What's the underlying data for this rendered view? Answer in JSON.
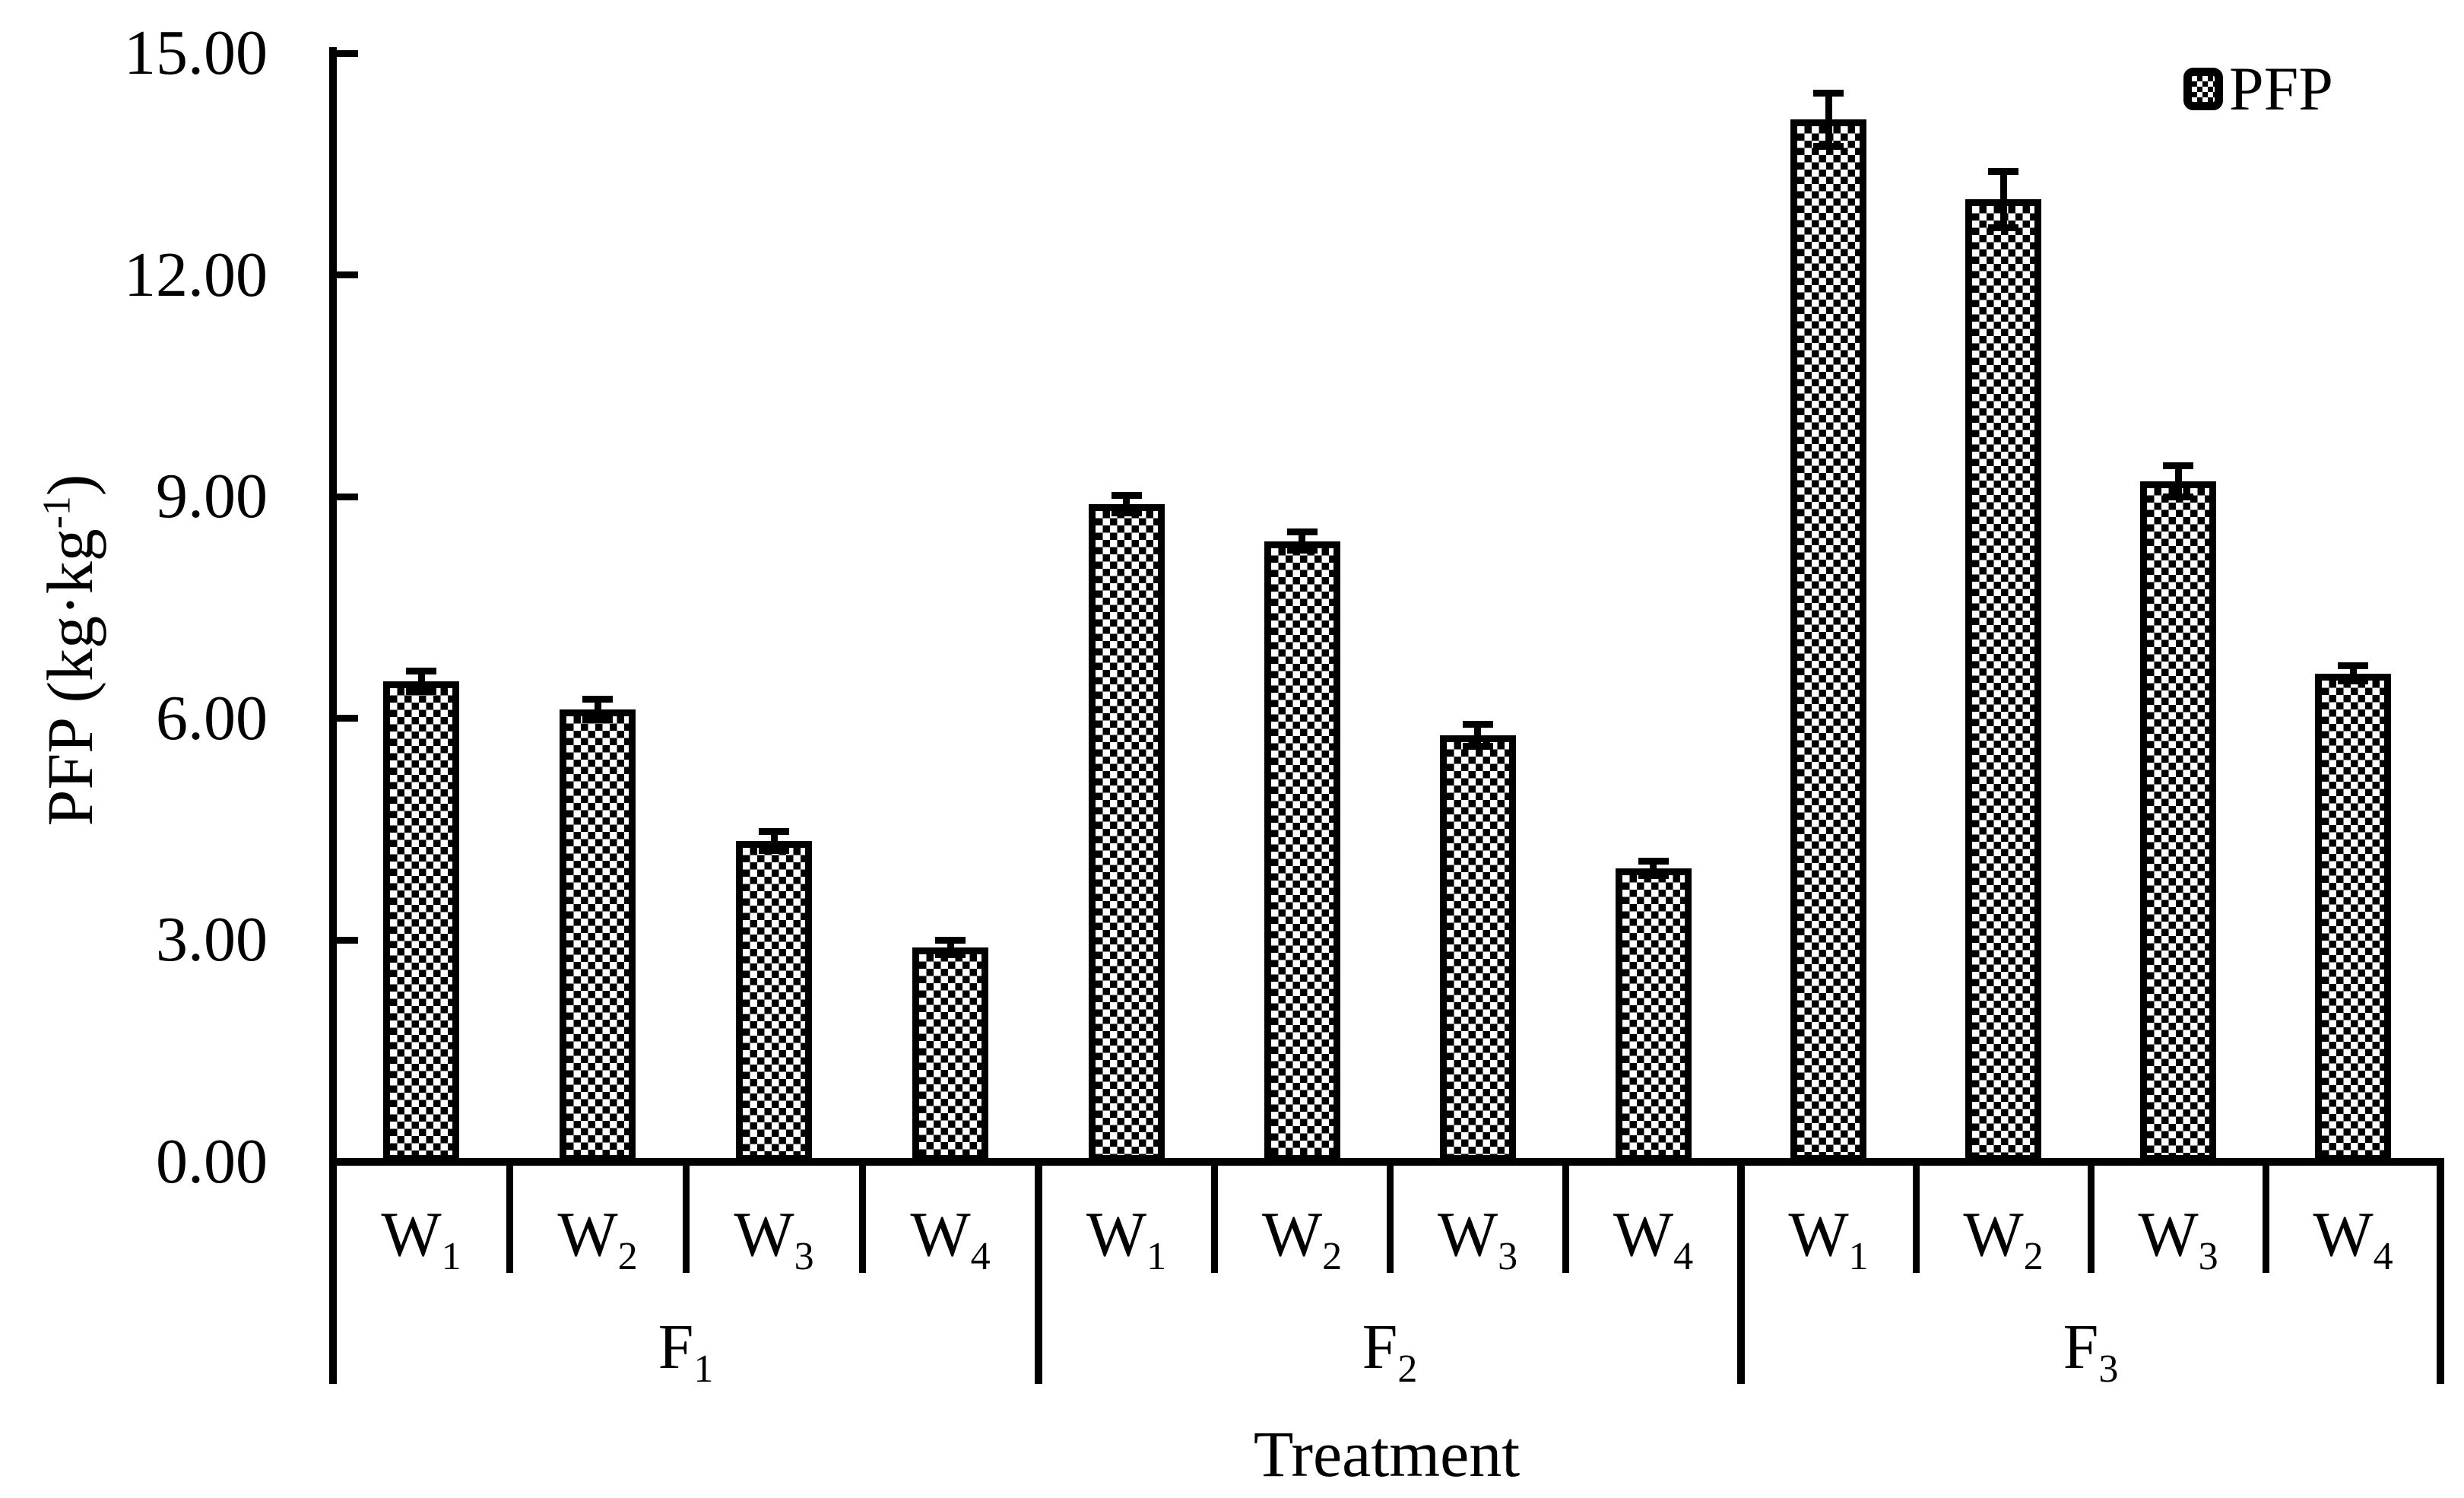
{
  "chart_data": {
    "type": "bar",
    "title": "",
    "xlabel": "Treatment",
    "ylabel": "PFP (kg·kg⁻¹)",
    "ylabel_main": "PFP (kg·kg",
    "ylabel_sup": "-1",
    "ylabel_close": ")",
    "legend": [
      "PFP"
    ],
    "legend_position": "top-right",
    "grid": false,
    "ylim": [
      0,
      15
    ],
    "yticks": [
      {
        "value": 0,
        "label": "0.00"
      },
      {
        "value": 3,
        "label": "3.00"
      },
      {
        "value": 6,
        "label": "6.00"
      },
      {
        "value": 9,
        "label": "9.00"
      },
      {
        "value": 12,
        "label": "12.00"
      },
      {
        "value": 15,
        "label": "15.00"
      }
    ],
    "bar_style": "black-white checkerboard fill with thick black outline and error bars",
    "colors": {
      "foreground": "#000000",
      "background": "#ffffff"
    },
    "groups": [
      {
        "label": "F1",
        "label_base": "F",
        "label_sub": "1",
        "bars": [
          {
            "label": "W1",
            "label_base": "W",
            "label_sub": "1",
            "value": 6.5,
            "error": 0.14
          },
          {
            "label": "W2",
            "label_base": "W",
            "label_sub": "2",
            "value": 6.12,
            "error": 0.14
          },
          {
            "label": "W3",
            "label_base": "W",
            "label_sub": "3",
            "value": 4.34,
            "error": 0.13
          },
          {
            "label": "W4",
            "label_base": "W",
            "label_sub": "4",
            "value": 2.9,
            "error": 0.1
          }
        ]
      },
      {
        "label": "F2",
        "label_base": "F",
        "label_sub": "2",
        "bars": [
          {
            "label": "W1",
            "label_base": "W",
            "label_sub": "1",
            "value": 8.9,
            "error": 0.12
          },
          {
            "label": "W2",
            "label_base": "W",
            "label_sub": "2",
            "value": 8.4,
            "error": 0.12
          },
          {
            "label": "W3",
            "label_base": "W",
            "label_sub": "3",
            "value": 5.77,
            "error": 0.15
          },
          {
            "label": "W4",
            "label_base": "W",
            "label_sub": "4",
            "value": 3.97,
            "error": 0.1
          }
        ]
      },
      {
        "label": "F3",
        "label_base": "F",
        "label_sub": "3",
        "bars": [
          {
            "label": "W1",
            "label_base": "W",
            "label_sub": "1",
            "value": 14.1,
            "error": 0.36
          },
          {
            "label": "W2",
            "label_base": "W",
            "label_sub": "2",
            "value": 13.02,
            "error": 0.38
          },
          {
            "label": "W3",
            "label_base": "W",
            "label_sub": "3",
            "value": 9.21,
            "error": 0.21
          },
          {
            "label": "W4",
            "label_base": "W",
            "label_sub": "4",
            "value": 6.61,
            "error": 0.1
          }
        ]
      }
    ]
  }
}
